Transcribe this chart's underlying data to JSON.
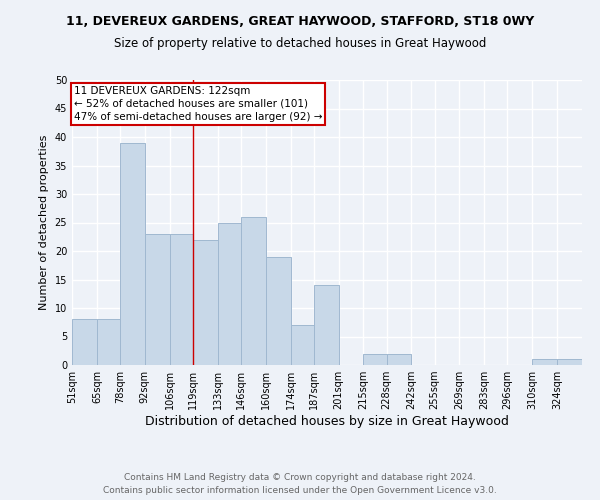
{
  "title": "11, DEVEREUX GARDENS, GREAT HAYWOOD, STAFFORD, ST18 0WY",
  "subtitle": "Size of property relative to detached houses in Great Haywood",
  "xlabel": "Distribution of detached houses by size in Great Haywood",
  "ylabel": "Number of detached properties",
  "footer_line1": "Contains HM Land Registry data © Crown copyright and database right 2024.",
  "footer_line2": "Contains public sector information licensed under the Open Government Licence v3.0.",
  "bin_labels": [
    "51sqm",
    "65sqm",
    "78sqm",
    "92sqm",
    "106sqm",
    "119sqm",
    "133sqm",
    "146sqm",
    "160sqm",
    "174sqm",
    "187sqm",
    "201sqm",
    "215sqm",
    "228sqm",
    "242sqm",
    "255sqm",
    "269sqm",
    "283sqm",
    "296sqm",
    "310sqm",
    "324sqm"
  ],
  "bar_heights": [
    8,
    8,
    39,
    23,
    23,
    22,
    25,
    26,
    19,
    7,
    14,
    0,
    2,
    2,
    0,
    0,
    0,
    0,
    0,
    1,
    1
  ],
  "bar_color": "#c8d8e8",
  "bar_edge_color": "#a0b8d0",
  "annotation_line1": "11 DEVEREUX GARDENS: 122sqm",
  "annotation_line2": "← 52% of detached houses are smaller (101)",
  "annotation_line3": "47% of semi-detached houses are larger (92) →",
  "vline_x": 119,
  "annotation_box_color": "#ffffff",
  "annotation_box_edge": "#cc0000",
  "vline_color": "#cc0000",
  "ylim": [
    0,
    50
  ],
  "yticks": [
    0,
    5,
    10,
    15,
    20,
    25,
    30,
    35,
    40,
    45,
    50
  ],
  "bin_edges_sqm": [
    51,
    65,
    78,
    92,
    106,
    119,
    133,
    146,
    160,
    174,
    187,
    201,
    215,
    228,
    242,
    255,
    269,
    283,
    296,
    310,
    324
  ],
  "background_color": "#eef2f8",
  "grid_color": "#ffffff",
  "title_fontsize": 9,
  "subtitle_fontsize": 8.5,
  "xlabel_fontsize": 9,
  "ylabel_fontsize": 8,
  "tick_fontsize": 7,
  "footer_fontsize": 6.5,
  "annotation_fontsize": 7.5
}
